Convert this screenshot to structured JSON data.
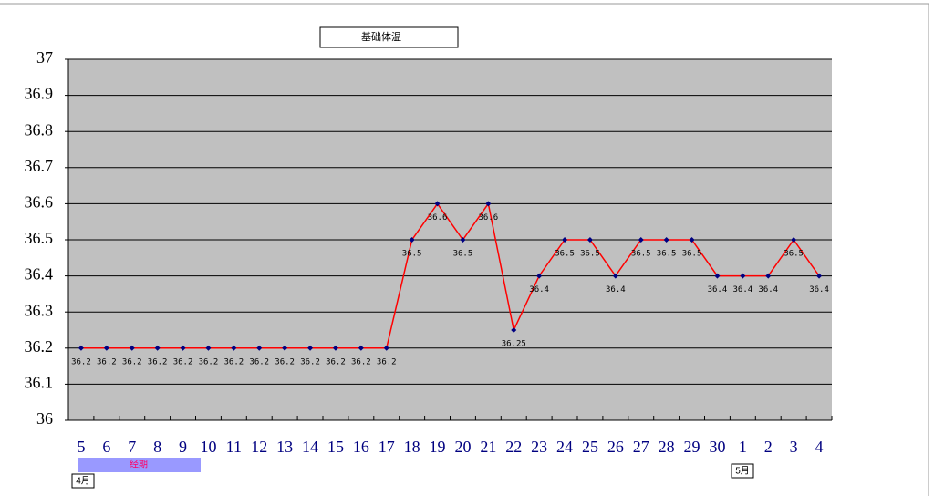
{
  "chart_data": {
    "type": "line",
    "title": "基础体温",
    "categories": [
      "5",
      "6",
      "7",
      "8",
      "9",
      "10",
      "11",
      "12",
      "13",
      "14",
      "15",
      "16",
      "17",
      "18",
      "19",
      "20",
      "21",
      "22",
      "23",
      "24",
      "25",
      "26",
      "27",
      "28",
      "29",
      "30",
      "1",
      "2",
      "3",
      "4"
    ],
    "series": [
      {
        "color": "#ff0000",
        "values": [
          36.2,
          36.2,
          36.2,
          36.2,
          36.2,
          36.2,
          36.2,
          36.2,
          36.2,
          36.2,
          36.2,
          36.2,
          36.2,
          36.5,
          36.6,
          36.5,
          36.6,
          36.25,
          36.4,
          36.5,
          36.5,
          36.4,
          36.5,
          36.5,
          36.5,
          36.4,
          36.4,
          36.4,
          36.5,
          36.4
        ]
      }
    ],
    "ylim": [
      36,
      37
    ],
    "yticks": [
      36,
      36.1,
      36.2,
      36.3,
      36.4,
      36.5,
      36.6,
      36.7,
      36.8,
      36.9,
      37
    ],
    "grid": true,
    "annotations": [
      "经期",
      "4月",
      "5月"
    ]
  }
}
